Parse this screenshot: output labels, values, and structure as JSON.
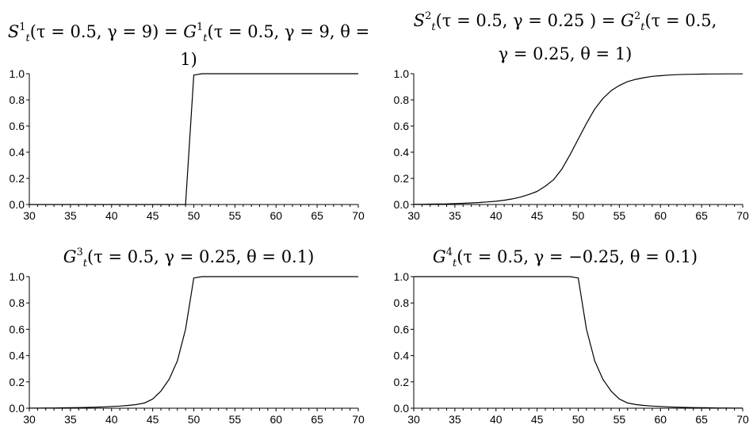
{
  "titles": [
    {
      "lhs_f": "S",
      "lhs_sup": "1",
      "lhs_sub": "t",
      "lhs_args": "(τ = 0.5, γ = 9)",
      "eq": " = ",
      "rhs_f": "G",
      "rhs_sup": "1",
      "rhs_sub": "t",
      "rhs_args": "(τ = 0.5, γ = 9, θ = 1)"
    },
    {
      "lhs_f": "S",
      "lhs_sup": "2",
      "lhs_sub": "t",
      "lhs_args": "(τ = 0.5, γ = 0.25 )",
      "eq": " = ",
      "rhs_f": "G",
      "rhs_sup": "2",
      "rhs_sub": "t",
      "rhs_args": "(τ = 0.5,",
      "line2": "γ = 0.25, θ = 1)"
    },
    {
      "f": "G",
      "sup": "3",
      "sub": "t",
      "args": "(τ = 0.5, γ = 0.25, θ = 0.1)"
    },
    {
      "f": "G",
      "sup": "4",
      "sub": "t",
      "args": "(τ = 0.5, γ = −0.25, θ = 0.1)"
    }
  ],
  "chart_data": [
    {
      "type": "line",
      "xlim": [
        30,
        70
      ],
      "ylim": [
        0,
        1
      ],
      "xticks": [
        "30",
        "35",
        "40",
        "45",
        "50",
        "55",
        "60",
        "65",
        "70"
      ],
      "yticks": [
        "0.0",
        "0.2",
        "0.4",
        "0.6",
        "0.8",
        "1.0"
      ],
      "x": [
        30,
        31,
        32,
        33,
        34,
        35,
        36,
        37,
        38,
        39,
        40,
        41,
        42,
        43,
        44,
        45,
        46,
        47,
        48,
        49,
        50,
        51,
        52,
        53,
        54,
        55,
        56,
        57,
        58,
        59,
        60,
        61,
        62,
        63,
        64,
        65,
        66,
        67,
        68,
        69,
        70
      ],
      "y": [
        0,
        0,
        0,
        0,
        0,
        0,
        0,
        0,
        0,
        0,
        0,
        0,
        0,
        0,
        0,
        0,
        0,
        0,
        0,
        0,
        0.99,
        1,
        1,
        1,
        1,
        1,
        1,
        1,
        1,
        1,
        1,
        1,
        1,
        1,
        1,
        1,
        1,
        1,
        1,
        1,
        1
      ]
    },
    {
      "type": "line",
      "xlim": [
        30,
        70
      ],
      "ylim": [
        0,
        1
      ],
      "xticks": [
        "30",
        "35",
        "40",
        "45",
        "50",
        "55",
        "60",
        "65",
        "70"
      ],
      "yticks": [
        "0.0",
        "0.2",
        "0.4",
        "0.6",
        "0.8",
        "1.0"
      ],
      "x": [
        30,
        31,
        32,
        33,
        34,
        35,
        36,
        37,
        38,
        39,
        40,
        41,
        42,
        43,
        44,
        45,
        46,
        47,
        48,
        49,
        50,
        51,
        52,
        53,
        54,
        55,
        56,
        57,
        58,
        59,
        60,
        61,
        62,
        63,
        64,
        65,
        66,
        67,
        68,
        69,
        70
      ],
      "y": [
        0.002,
        0.002,
        0.003,
        0.004,
        0.005,
        0.007,
        0.009,
        0.012,
        0.015,
        0.02,
        0.025,
        0.033,
        0.043,
        0.057,
        0.077,
        0.1,
        0.14,
        0.19,
        0.27,
        0.38,
        0.5,
        0.62,
        0.73,
        0.81,
        0.87,
        0.91,
        0.94,
        0.957,
        0.97,
        0.98,
        0.985,
        0.99,
        0.993,
        0.995,
        0.996,
        0.997,
        0.998,
        0.998,
        0.999,
        0.999,
        0.999
      ]
    },
    {
      "type": "line",
      "xlim": [
        30,
        70
      ],
      "ylim": [
        0,
        1
      ],
      "xticks": [
        "30",
        "35",
        "40",
        "45",
        "50",
        "55",
        "60",
        "65",
        "70"
      ],
      "yticks": [
        "0.0",
        "0.2",
        "0.4",
        "0.6",
        "0.8",
        "1.0"
      ],
      "x": [
        30,
        31,
        32,
        33,
        34,
        35,
        36,
        37,
        38,
        39,
        40,
        41,
        42,
        43,
        44,
        45,
        46,
        47,
        48,
        49,
        50,
        51,
        52,
        53,
        54,
        55,
        56,
        57,
        58,
        59,
        60,
        61,
        62,
        63,
        64,
        65,
        66,
        67,
        68,
        69,
        70
      ],
      "y": [
        0.001,
        0.001,
        0.002,
        0.002,
        0.003,
        0.004,
        0.005,
        0.006,
        0.008,
        0.01,
        0.013,
        0.016,
        0.021,
        0.028,
        0.04,
        0.07,
        0.13,
        0.22,
        0.36,
        0.6,
        0.99,
        1,
        1,
        1,
        1,
        1,
        1,
        1,
        1,
        1,
        1,
        1,
        1,
        1,
        1,
        1,
        1,
        1,
        1,
        1,
        1
      ]
    },
    {
      "type": "line",
      "xlim": [
        30,
        70
      ],
      "ylim": [
        0,
        1
      ],
      "xticks": [
        "30",
        "35",
        "40",
        "45",
        "50",
        "55",
        "60",
        "65",
        "70"
      ],
      "yticks": [
        "0.0",
        "0.2",
        "0.4",
        "0.6",
        "0.8",
        "1.0"
      ],
      "x": [
        30,
        31,
        32,
        33,
        34,
        35,
        36,
        37,
        38,
        39,
        40,
        41,
        42,
        43,
        44,
        45,
        46,
        47,
        48,
        49,
        50,
        51,
        52,
        53,
        54,
        55,
        56,
        57,
        58,
        59,
        60,
        61,
        62,
        63,
        64,
        65,
        66,
        67,
        68,
        69,
        70
      ],
      "y": [
        1,
        1,
        1,
        1,
        1,
        1,
        1,
        1,
        1,
        1,
        1,
        1,
        1,
        1,
        1,
        1,
        1,
        1,
        1,
        1,
        0.99,
        0.6,
        0.36,
        0.22,
        0.13,
        0.07,
        0.04,
        0.028,
        0.021,
        0.016,
        0.013,
        0.01,
        0.008,
        0.006,
        0.005,
        0.004,
        0.003,
        0.002,
        0.002,
        0.001,
        0.001
      ]
    }
  ]
}
